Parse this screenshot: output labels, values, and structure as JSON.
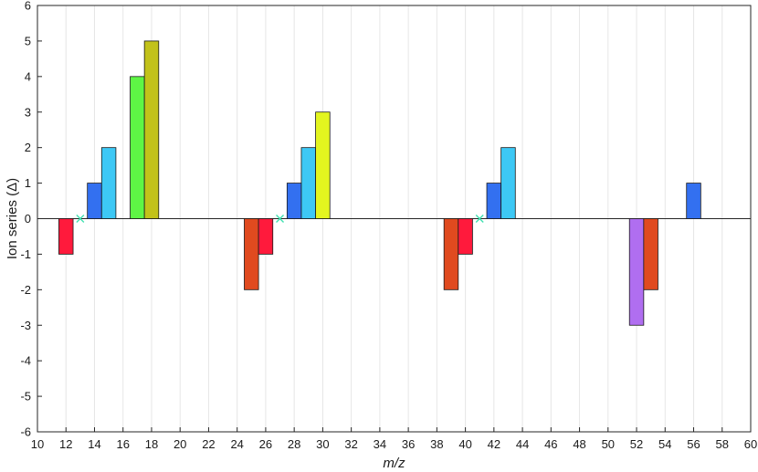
{
  "chart_data": {
    "type": "bar",
    "xlabel": "m/z",
    "ylabel": "Ion series (Δ)",
    "xlim": [
      10,
      60
    ],
    "ylim": [
      -6,
      6
    ],
    "xticks": [
      10,
      12,
      14,
      16,
      18,
      20,
      22,
      24,
      26,
      28,
      30,
      32,
      34,
      36,
      38,
      40,
      42,
      44,
      46,
      48,
      50,
      52,
      54,
      56,
      58,
      60
    ],
    "yticks": [
      -6,
      -5,
      -4,
      -3,
      -2,
      -1,
      0,
      1,
      2,
      3,
      4,
      5,
      6
    ],
    "grid": "vertical",
    "bars": [
      {
        "x": 12,
        "value": -1,
        "color": "#ff1a3c"
      },
      {
        "x": 14,
        "value": 1,
        "color": "#3370f0"
      },
      {
        "x": 15,
        "value": 2,
        "color": "#3dc8f5"
      },
      {
        "x": 17,
        "value": 4,
        "color": "#5ef545"
      },
      {
        "x": 18,
        "value": 5,
        "color": "#c2c21a"
      },
      {
        "x": 25,
        "value": -2,
        "color": "#e04a1f"
      },
      {
        "x": 26,
        "value": -1,
        "color": "#ff1a3c"
      },
      {
        "x": 28,
        "value": 1,
        "color": "#3370f0"
      },
      {
        "x": 29,
        "value": 2,
        "color": "#3dc8f5"
      },
      {
        "x": 30,
        "value": 3,
        "color": "#e3f51f"
      },
      {
        "x": 39,
        "value": -2,
        "color": "#e04a1f"
      },
      {
        "x": 40,
        "value": -1,
        "color": "#ff1a3c"
      },
      {
        "x": 42,
        "value": 1,
        "color": "#3370f0"
      },
      {
        "x": 43,
        "value": 2,
        "color": "#3dc8f5"
      },
      {
        "x": 52,
        "value": -3,
        "color": "#b06ef0"
      },
      {
        "x": 53,
        "value": -2,
        "color": "#e04a1f"
      },
      {
        "x": 56,
        "value": 1,
        "color": "#3370f0"
      }
    ],
    "markers": [
      {
        "x": 13,
        "y": 0,
        "symbol": "x",
        "color": "#40e0b0"
      },
      {
        "x": 27,
        "y": 0,
        "symbol": "x",
        "color": "#40e0b0"
      },
      {
        "x": 41,
        "y": 0,
        "symbol": "x",
        "color": "#40e0b0"
      }
    ]
  }
}
